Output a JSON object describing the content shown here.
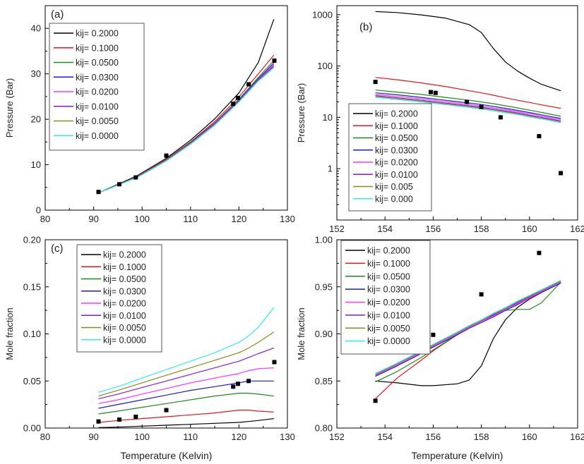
{
  "legend_labels": {
    "a": [
      "kij= 0.2000",
      "kij= 0.1000",
      "kij= 0.0500",
      "kij= 0.0300",
      "kij= 0.0200",
      "kij= 0.0100",
      "kij= 0.0050",
      "kij= 0.0000"
    ],
    "b": [
      "kij= 0.2000",
      "kij= 0.1000",
      "kij= 0.0500",
      "kij= 0.0300",
      "kij= 0.0200",
      "kij= 0.0100",
      "kij= 0.005",
      "kij= 0.000"
    ],
    "c": [
      "kij= 0.2000",
      "kij= 0.1000",
      "kij= 0.0500",
      "kij= 0.0300",
      "kij= 0.0200",
      "kij= 0.0100",
      "kij= 0.0050",
      "kij= 0.0000"
    ],
    "d": [
      "kij= 0.2000",
      "kij= 0.1000",
      "kij= 0.0500",
      "kij= 0.0300",
      "kij= 0.0200",
      "kij= 0.0100",
      "kij= 0.0050",
      "kij= 0.0000"
    ]
  },
  "series_colors": [
    "#000000",
    "#e8141c",
    "#1f8a1f",
    "#1a1ad6",
    "#ff33ff",
    "#8a1ad6",
    "#8a8a1a",
    "#33e8ff"
  ],
  "chart_data": [
    {
      "id": "a",
      "panel_label": "(a)",
      "type": "line",
      "xlabel": "",
      "ylabel": "Pressure (Bar)",
      "xlim": [
        80,
        130
      ],
      "ylim": [
        0,
        45
      ],
      "yscale": "linear",
      "xticks": [
        80,
        90,
        100,
        110,
        120,
        130
      ],
      "yticks": [
        0,
        10,
        20,
        30,
        40
      ],
      "xtick_labels": [
        "80",
        "90",
        "100",
        "110",
        "120",
        "130"
      ],
      "ytick_labels": [
        "0",
        "10",
        "20",
        "30",
        "40"
      ],
      "x": [
        91,
        95,
        99,
        105,
        110,
        115,
        120,
        124,
        127.2
      ],
      "series": [
        {
          "name": "kij= 0.2000",
          "values": [
            3.8,
            5.7,
            7.6,
            11.4,
            15.4,
            20.1,
            25.8,
            32.5,
            42.0
          ]
        },
        {
          "name": "kij= 0.1000",
          "values": [
            3.8,
            5.6,
            7.5,
            11.2,
            15.0,
            19.5,
            24.9,
            30.0,
            34.1
          ]
        },
        {
          "name": "kij= 0.0500",
          "values": [
            3.8,
            5.6,
            7.4,
            11.1,
            14.9,
            19.2,
            24.4,
            29.2,
            32.9
          ]
        },
        {
          "name": "kij= 0.0300",
          "values": [
            3.8,
            5.5,
            7.3,
            11.0,
            14.8,
            19.1,
            24.2,
            28.9,
            32.4
          ]
        },
        {
          "name": "kij= 0.0200",
          "values": [
            3.8,
            5.5,
            7.3,
            11.0,
            14.7,
            19.0,
            24.1,
            28.7,
            32.1
          ]
        },
        {
          "name": "kij= 0.0100",
          "values": [
            3.8,
            5.5,
            7.3,
            10.9,
            14.6,
            18.9,
            24.0,
            28.6,
            31.8
          ]
        },
        {
          "name": "kij= 0.0050",
          "values": [
            3.8,
            5.5,
            7.2,
            10.9,
            14.6,
            18.8,
            23.9,
            28.5,
            31.6
          ]
        },
        {
          "name": "kij= 0.0000",
          "values": [
            3.8,
            5.5,
            7.2,
            10.8,
            14.5,
            18.7,
            23.8,
            28.4,
            31.3
          ]
        }
      ],
      "experimental": {
        "x": [
          91,
          95.3,
          98.7,
          105,
          118.8,
          119.8,
          122,
          127.3
        ],
        "y": [
          4.0,
          5.7,
          7.2,
          12.0,
          23.4,
          24.7,
          27.7,
          32.9
        ]
      },
      "legend": "top-left"
    },
    {
      "id": "b",
      "panel_label": "(b)",
      "type": "line",
      "xlabel": "",
      "ylabel": "Pressure (Bar)",
      "xlim": [
        152,
        162
      ],
      "ylim": [
        0.1,
        1500
      ],
      "yscale": "log",
      "xticks": [
        152,
        154,
        156,
        158,
        160,
        162
      ],
      "yticks": [
        1,
        10,
        100,
        1000
      ],
      "xtick_labels": [
        "152",
        "154",
        "156",
        "158",
        "160",
        "162"
      ],
      "ytick_labels": [
        "1",
        "10",
        "100",
        "1000"
      ],
      "x": [
        153.6,
        154.5,
        155.5,
        156.5,
        157.5,
        158.0,
        158.5,
        159.0,
        159.5,
        160.0,
        160.5,
        161.3
      ],
      "series": [
        {
          "name": "kij= 0.2000",
          "values": [
            1150,
            1100,
            990,
            860,
            640,
            450,
            220,
            120,
            80,
            58,
            44,
            33
          ]
        },
        {
          "name": "kij= 0.1000",
          "values": [
            60,
            54,
            47,
            40,
            33,
            30,
            27,
            24,
            21.5,
            19.5,
            17.5,
            15.0
          ]
        },
        {
          "name": "kij= 0.0500",
          "values": [
            34,
            31,
            28,
            24.5,
            21.5,
            20,
            18.5,
            16.8,
            15.3,
            13.8,
            12.5,
            10.5
          ]
        },
        {
          "name": "kij= 0.0300",
          "values": [
            30,
            27.5,
            24.5,
            21.5,
            19,
            17.8,
            16.4,
            15,
            13.7,
            12.4,
            11.2,
            9.5
          ]
        },
        {
          "name": "kij= 0.0200",
          "values": [
            28,
            25.5,
            23,
            20.2,
            17.8,
            16.6,
            15.4,
            14.1,
            12.9,
            11.7,
            10.6,
            9.0
          ]
        },
        {
          "name": "kij= 0.0100",
          "values": [
            26.5,
            24,
            21.5,
            19,
            16.8,
            15.7,
            14.5,
            13.3,
            12.2,
            11,
            10,
            8.5
          ]
        },
        {
          "name": "kij= 0.005",
          "values": [
            25.5,
            23.2,
            20.8,
            18.4,
            16.2,
            15.1,
            14,
            12.8,
            11.7,
            10.6,
            9.6,
            8.2
          ]
        },
        {
          "name": "kij= 0.000",
          "values": [
            24.5,
            22.3,
            20,
            17.7,
            15.6,
            14.5,
            13.4,
            12.3,
            11.3,
            10.2,
            9.3,
            7.9
          ]
        }
      ],
      "experimental": {
        "x": [
          153.6,
          155.9,
          156.1,
          157.4,
          158.0,
          158.8,
          160.4,
          161.3
        ],
        "y": [
          49,
          31,
          30,
          20,
          16,
          10,
          4.3,
          0.82
        ]
      },
      "legend": "bottom-left"
    },
    {
      "id": "c",
      "panel_label": "(c)",
      "type": "line",
      "xlabel": "Temperature (Kelvin)",
      "ylabel": "Mole fraction",
      "xlim": [
        80,
        130
      ],
      "ylim": [
        0,
        0.2
      ],
      "yscale": "linear",
      "xticks": [
        80,
        90,
        100,
        110,
        120,
        130
      ],
      "yticks": [
        0,
        0.05,
        0.1,
        0.15,
        0.2
      ],
      "xtick_labels": [
        "80",
        "90",
        "100",
        "110",
        "120",
        "130"
      ],
      "ytick_labels": [
        "0.00",
        "0.05",
        "0.10",
        "0.15",
        "0.20"
      ],
      "x": [
        91,
        95,
        100,
        105,
        110,
        115,
        120,
        122,
        124,
        127.2
      ],
      "series": [
        {
          "name": "kij= 0.2000",
          "values": [
            0.0005,
            0.001,
            0.002,
            0.003,
            0.004,
            0.005,
            0.006,
            0.007,
            0.008,
            0.01
          ]
        },
        {
          "name": "kij= 0.1000",
          "values": [
            0.006,
            0.008,
            0.01,
            0.012,
            0.014,
            0.016,
            0.019,
            0.019,
            0.018,
            0.017
          ]
        },
        {
          "name": "kij= 0.0500",
          "values": [
            0.015,
            0.018,
            0.022,
            0.026,
            0.03,
            0.034,
            0.037,
            0.037,
            0.036,
            0.034
          ]
        },
        {
          "name": "kij= 0.0300",
          "values": [
            0.021,
            0.025,
            0.03,
            0.035,
            0.04,
            0.044,
            0.048,
            0.05,
            0.05,
            0.05
          ]
        },
        {
          "name": "kij= 0.0200",
          "values": [
            0.026,
            0.03,
            0.036,
            0.042,
            0.048,
            0.053,
            0.058,
            0.061,
            0.063,
            0.064
          ]
        },
        {
          "name": "kij= 0.0100",
          "values": [
            0.031,
            0.036,
            0.043,
            0.05,
            0.057,
            0.064,
            0.071,
            0.075,
            0.079,
            0.085
          ]
        },
        {
          "name": "kij= 0.0050",
          "values": [
            0.034,
            0.04,
            0.048,
            0.056,
            0.064,
            0.072,
            0.08,
            0.085,
            0.091,
            0.102
          ]
        },
        {
          "name": "kij= 0.0000",
          "values": [
            0.038,
            0.044,
            0.053,
            0.062,
            0.071,
            0.08,
            0.091,
            0.098,
            0.107,
            0.128
          ]
        }
      ],
      "experimental": {
        "x": [
          91,
          95.3,
          98.7,
          105,
          118.8,
          119.8,
          122,
          127.3
        ],
        "y": [
          0.007,
          0.009,
          0.012,
          0.019,
          0.044,
          0.047,
          0.05,
          0.07
        ]
      },
      "legend": "top-left"
    },
    {
      "id": "d",
      "panel_label": "(d)",
      "type": "line",
      "xlabel": "Temperature (Kelvin)",
      "ylabel": "Mole fraction",
      "xlim": [
        152,
        162
      ],
      "ylim": [
        0.8,
        1.0
      ],
      "yscale": "linear",
      "xticks": [
        152,
        154,
        156,
        158,
        160,
        162
      ],
      "yticks": [
        0.8,
        0.85,
        0.9,
        0.95,
        1.0
      ],
      "xtick_labels": [
        "152",
        "154",
        "156",
        "158",
        "160",
        "162"
      ],
      "ytick_labels": [
        "0.80",
        "0.85",
        "0.90",
        "0.95",
        "1.00"
      ],
      "x": [
        153.6,
        154.5,
        155.5,
        156.0,
        157.0,
        157.5,
        158.0,
        158.5,
        159.0,
        159.5,
        160.0,
        160.5,
        161.3
      ],
      "series": [
        {
          "name": "kij= 0.2000",
          "values": [
            0.85,
            0.848,
            0.845,
            0.845,
            0.847,
            0.851,
            0.866,
            0.895,
            0.915,
            0.928,
            0.937,
            0.944,
            0.956
          ]
        },
        {
          "name": "kij= 0.1000",
          "values": [
            0.831,
            0.853,
            0.872,
            0.882,
            0.899,
            0.907,
            0.914,
            0.921,
            0.927,
            0.934,
            0.94,
            0.946,
            0.956
          ]
        },
        {
          "name": "kij= 0.0500",
          "values": [
            0.849,
            0.86,
            0.875,
            0.883,
            0.899,
            0.907,
            0.914,
            0.921,
            0.925,
            0.926,
            0.926,
            0.933,
            0.955
          ]
        },
        {
          "name": "kij= 0.0300",
          "values": [
            0.855,
            0.866,
            0.879,
            0.886,
            0.899,
            0.906,
            0.912,
            0.918,
            0.925,
            0.931,
            0.938,
            0.944,
            0.954
          ]
        },
        {
          "name": "kij= 0.0200",
          "values": [
            0.856,
            0.867,
            0.88,
            0.887,
            0.9,
            0.907,
            0.913,
            0.919,
            0.926,
            0.932,
            0.938,
            0.945,
            0.955
          ]
        },
        {
          "name": "kij= 0.0100",
          "values": [
            0.857,
            0.868,
            0.881,
            0.888,
            0.901,
            0.908,
            0.914,
            0.92,
            0.927,
            0.933,
            0.939,
            0.946,
            0.956
          ]
        },
        {
          "name": "kij= 0.0050",
          "values": [
            0.857,
            0.868,
            0.881,
            0.888,
            0.901,
            0.908,
            0.914,
            0.921,
            0.927,
            0.934,
            0.94,
            0.946,
            0.956
          ]
        },
        {
          "name": "kij= 0.0000",
          "values": [
            0.858,
            0.869,
            0.882,
            0.889,
            0.902,
            0.909,
            0.915,
            0.922,
            0.928,
            0.935,
            0.941,
            0.947,
            0.957
          ]
        }
      ],
      "experimental": {
        "x": [
          153.6,
          156.0,
          158.0,
          160.4
        ],
        "y": [
          0.829,
          0.899,
          0.942,
          0.986
        ]
      },
      "legend": "top-left"
    }
  ]
}
